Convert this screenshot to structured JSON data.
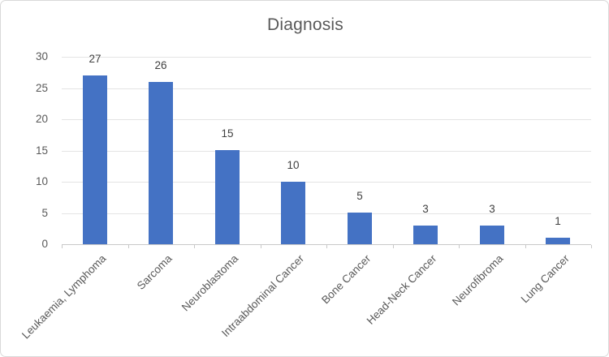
{
  "chart_data": {
    "type": "bar",
    "title": "Diagnosis",
    "categories": [
      "Leukaemia, Lymphoma",
      "Sarcoma",
      "Neuroblastoma",
      "Intraabdominal Cancer",
      "Bone Cancer",
      "Head-Neck Cancer",
      "Neurofibroma",
      "Lung Cancer"
    ],
    "values": [
      27,
      26,
      15,
      10,
      5,
      3,
      3,
      1
    ],
    "data_labels": [
      "27",
      "26",
      "15",
      "10",
      "5",
      "3",
      "3",
      "1"
    ],
    "yticks": [
      0,
      5,
      10,
      15,
      20,
      25,
      30
    ],
    "ylim": [
      0,
      30
    ],
    "xlabel": "",
    "ylabel": "",
    "grid": true,
    "legend_position": "none",
    "x_label_rotation_deg": 45,
    "colors": {
      "bar_fill": "#4472c4",
      "gridline": "#e4e4e4",
      "axis_line": "#c8c8c8",
      "tick_label_text": "#595959",
      "data_label_text": "#404040",
      "title_text": "#595959",
      "frame_border": "#d9d9d9",
      "background": "#ffffff"
    }
  }
}
